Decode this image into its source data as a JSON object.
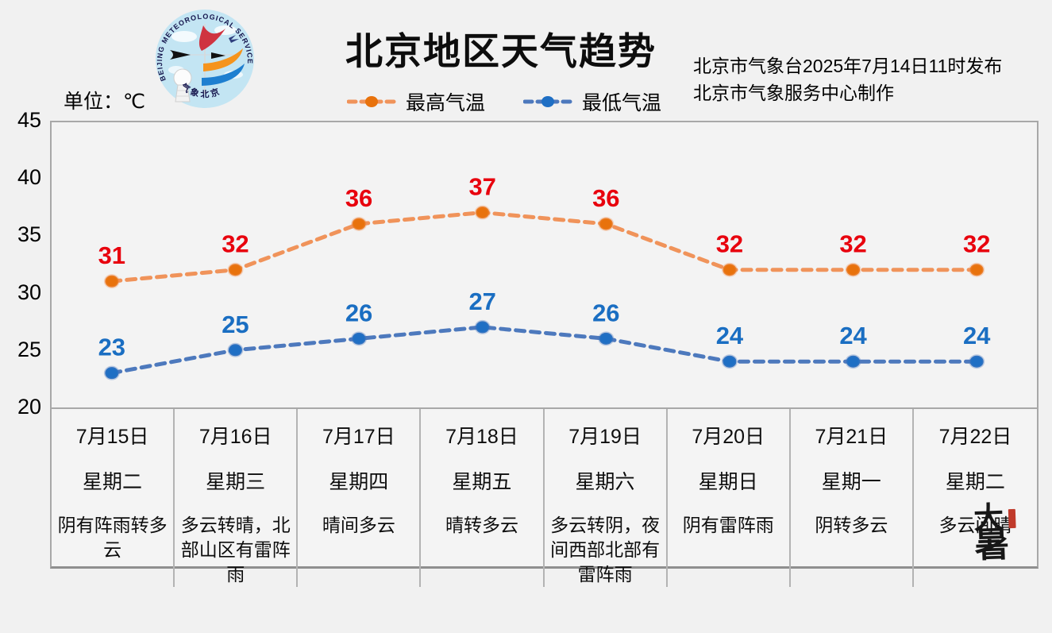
{
  "header": {
    "title": "北京地区天气趋势",
    "issuer_line1": "北京市气象台2025年7月14日11时发布",
    "issuer_line2": "北京市气象服务中心制作",
    "unit_label": "单位：℃",
    "logo": {
      "arc_text": "BEIJING METEOROLOGICAL SERVICE",
      "bottom_text": "气象北京"
    }
  },
  "colors": {
    "max_line": "#f0935a",
    "max_point": "#e8720c",
    "max_label": "#e8000d",
    "min_line": "#4d79bd",
    "min_point": "#1f6fc4",
    "min_label": "#1a6ec2",
    "frame": "#a8a8a8"
  },
  "chart_data": {
    "type": "line",
    "title": "北京地区天气趋势",
    "categories": [
      "7月15日",
      "7月16日",
      "7月17日",
      "7月18日",
      "7月19日",
      "7月20日",
      "7月21日",
      "7月22日"
    ],
    "series": [
      {
        "name": "最高气温",
        "values": [
          31,
          32,
          36,
          37,
          36,
          32,
          32,
          32
        ],
        "line_color": "#f0935a",
        "point_color": "#e8720c",
        "label_color": "#e8000d"
      },
      {
        "name": "最低气温",
        "values": [
          23,
          25,
          26,
          27,
          26,
          24,
          24,
          24
        ],
        "line_color": "#4d79bd",
        "point_color": "#1f6fc4",
        "label_color": "#1a6ec2"
      }
    ],
    "ylim": [
      20,
      45
    ],
    "yticks": [
      45,
      40,
      35,
      30,
      25,
      20
    ],
    "ylabel": "单位：℃",
    "grid": false,
    "legend_position": "top",
    "line_style": "dashed"
  },
  "days": [
    {
      "date": "7月15日",
      "weekday": "星期二",
      "weather": "阴有阵雨转多云"
    },
    {
      "date": "7月16日",
      "weekday": "星期三",
      "weather": "多云转晴，北部山区有雷阵雨"
    },
    {
      "date": "7月17日",
      "weekday": "星期四",
      "weather": "晴间多云"
    },
    {
      "date": "7月18日",
      "weekday": "星期五",
      "weather": "晴转多云"
    },
    {
      "date": "7月19日",
      "weekday": "星期六",
      "weather": "多云转阴，夜间西部北部有雷阵雨"
    },
    {
      "date": "7月20日",
      "weekday": "星期日",
      "weather": "阴有雷阵雨"
    },
    {
      "date": "7月21日",
      "weekday": "星期一",
      "weather": "阴转多云"
    },
    {
      "date": "7月22日",
      "weekday": "星期二",
      "weather": "多云间晴"
    }
  ],
  "seal": {
    "top": "大",
    "bottom": "暑"
  },
  "legend": [
    {
      "label": "最高气温"
    },
    {
      "label": "最低气温"
    }
  ]
}
